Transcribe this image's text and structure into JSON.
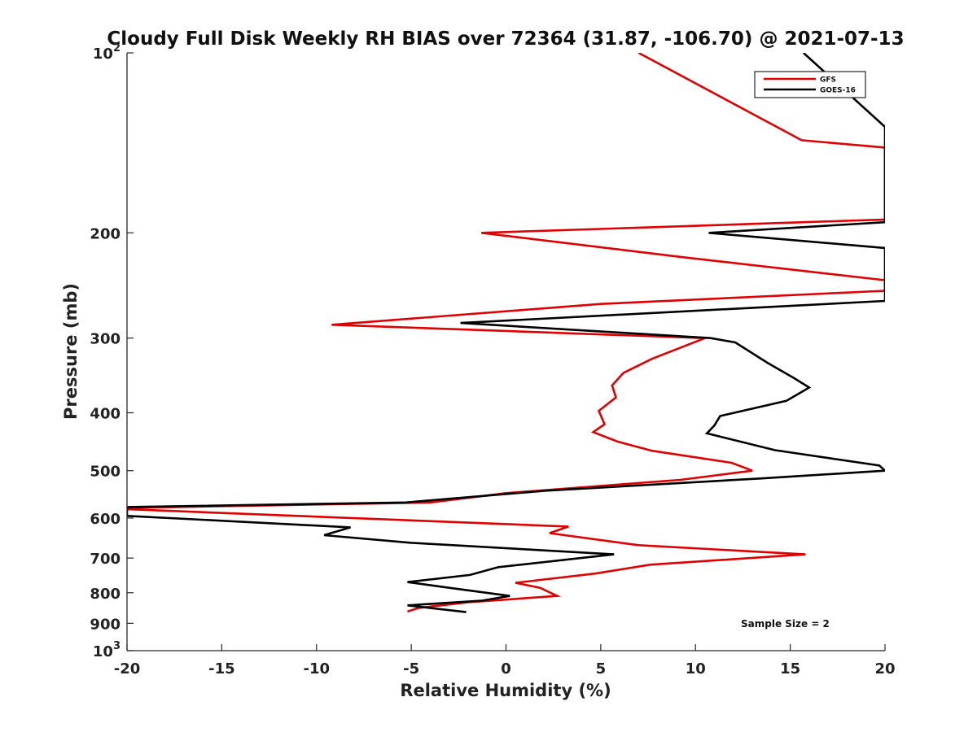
{
  "chart_data": {
    "type": "line",
    "title": "Cloudy Full Disk Weekly RH BIAS over 72364 (31.87, -106.70) @ 2021-07-13",
    "xlabel": "Relative Humidity (%)",
    "ylabel": "Pressure (mb)",
    "xlim": [
      -20,
      20
    ],
    "ylim": [
      100,
      1000
    ],
    "yscale": "log",
    "yreversed": true,
    "grid": false,
    "legend_position": "top-right",
    "x_ticks": [
      "-20",
      "-15",
      "-10",
      "-5",
      "0",
      "5",
      "10",
      "15",
      "20"
    ],
    "y_ticks": [
      {
        "value": 100,
        "base": "10",
        "exp": "2"
      },
      {
        "value": 200,
        "label": "200"
      },
      {
        "value": 300,
        "label": "300"
      },
      {
        "value": 400,
        "label": "400"
      },
      {
        "value": 500,
        "label": "500"
      },
      {
        "value": 600,
        "label": "600"
      },
      {
        "value": 700,
        "label": "700"
      },
      {
        "value": 800,
        "label": "800"
      },
      {
        "value": 900,
        "label": "900"
      },
      {
        "value": 1000,
        "base": "10",
        "exp": "3"
      }
    ],
    "series": [
      {
        "name": "GFS",
        "color": "#e00000",
        "points": [
          [
            7.0,
            100
          ],
          [
            15.6,
            140
          ],
          [
            20.0,
            144
          ],
          [
            20.0,
            190
          ],
          [
            -1.3,
            200
          ],
          [
            9.5,
            220
          ],
          [
            20.0,
            240
          ],
          [
            20.0,
            250
          ],
          [
            5.0,
            263
          ],
          [
            -9.2,
            285
          ],
          [
            10.5,
            300
          ],
          [
            7.7,
            325
          ],
          [
            6.2,
            343
          ],
          [
            5.6,
            360
          ],
          [
            5.8,
            377
          ],
          [
            4.9,
            397
          ],
          [
            5.2,
            418
          ],
          [
            4.6,
            431
          ],
          [
            5.9,
            447
          ],
          [
            7.7,
            463
          ],
          [
            11.9,
            485
          ],
          [
            13.0,
            500
          ],
          [
            9.2,
            518
          ],
          [
            0.0,
            545
          ],
          [
            -4.0,
            565
          ],
          [
            -20.0,
            577
          ],
          [
            -20.0,
            580
          ],
          [
            3.3,
            620
          ],
          [
            2.3,
            636
          ],
          [
            7.0,
            666
          ],
          [
            15.8,
            690
          ],
          [
            7.6,
            718
          ],
          [
            4.7,
            743
          ],
          [
            0.5,
            770
          ],
          [
            1.8,
            785
          ],
          [
            2.7,
            810
          ],
          [
            -2.0,
            830
          ],
          [
            -4.6,
            848
          ],
          [
            -5.2,
            860
          ]
        ]
      },
      {
        "name": "GOES-16",
        "color": "#000000",
        "points": [
          [
            15.7,
            100
          ],
          [
            20.0,
            133
          ],
          [
            20.0,
            192
          ],
          [
            10.7,
            200
          ],
          [
            20.0,
            212
          ],
          [
            20.0,
            260
          ],
          [
            -2.4,
            283
          ],
          [
            10.8,
            300
          ],
          [
            12.1,
            305
          ],
          [
            13.8,
            330
          ],
          [
            15.2,
            350
          ],
          [
            16.0,
            363
          ],
          [
            14.8,
            382
          ],
          [
            11.3,
            405
          ],
          [
            11.0,
            420
          ],
          [
            10.6,
            433
          ],
          [
            14.2,
            462
          ],
          [
            19.7,
            490
          ],
          [
            20.0,
            500
          ],
          [
            13.5,
            515
          ],
          [
            2.1,
            540
          ],
          [
            -5.3,
            565
          ],
          [
            -20.0,
            575
          ],
          [
            -20.0,
            595
          ],
          [
            -8.2,
            622
          ],
          [
            -9.6,
            641
          ],
          [
            -5.0,
            660
          ],
          [
            5.7,
            690
          ],
          [
            -0.4,
            725
          ],
          [
            -1.9,
            747
          ],
          [
            -5.2,
            768
          ],
          [
            -3.0,
            785
          ],
          [
            0.2,
            810
          ],
          [
            -1.3,
            825
          ],
          [
            -5.2,
            840
          ],
          [
            -2.1,
            862
          ]
        ]
      }
    ],
    "annotations": [
      "Sample Size = 2"
    ]
  }
}
